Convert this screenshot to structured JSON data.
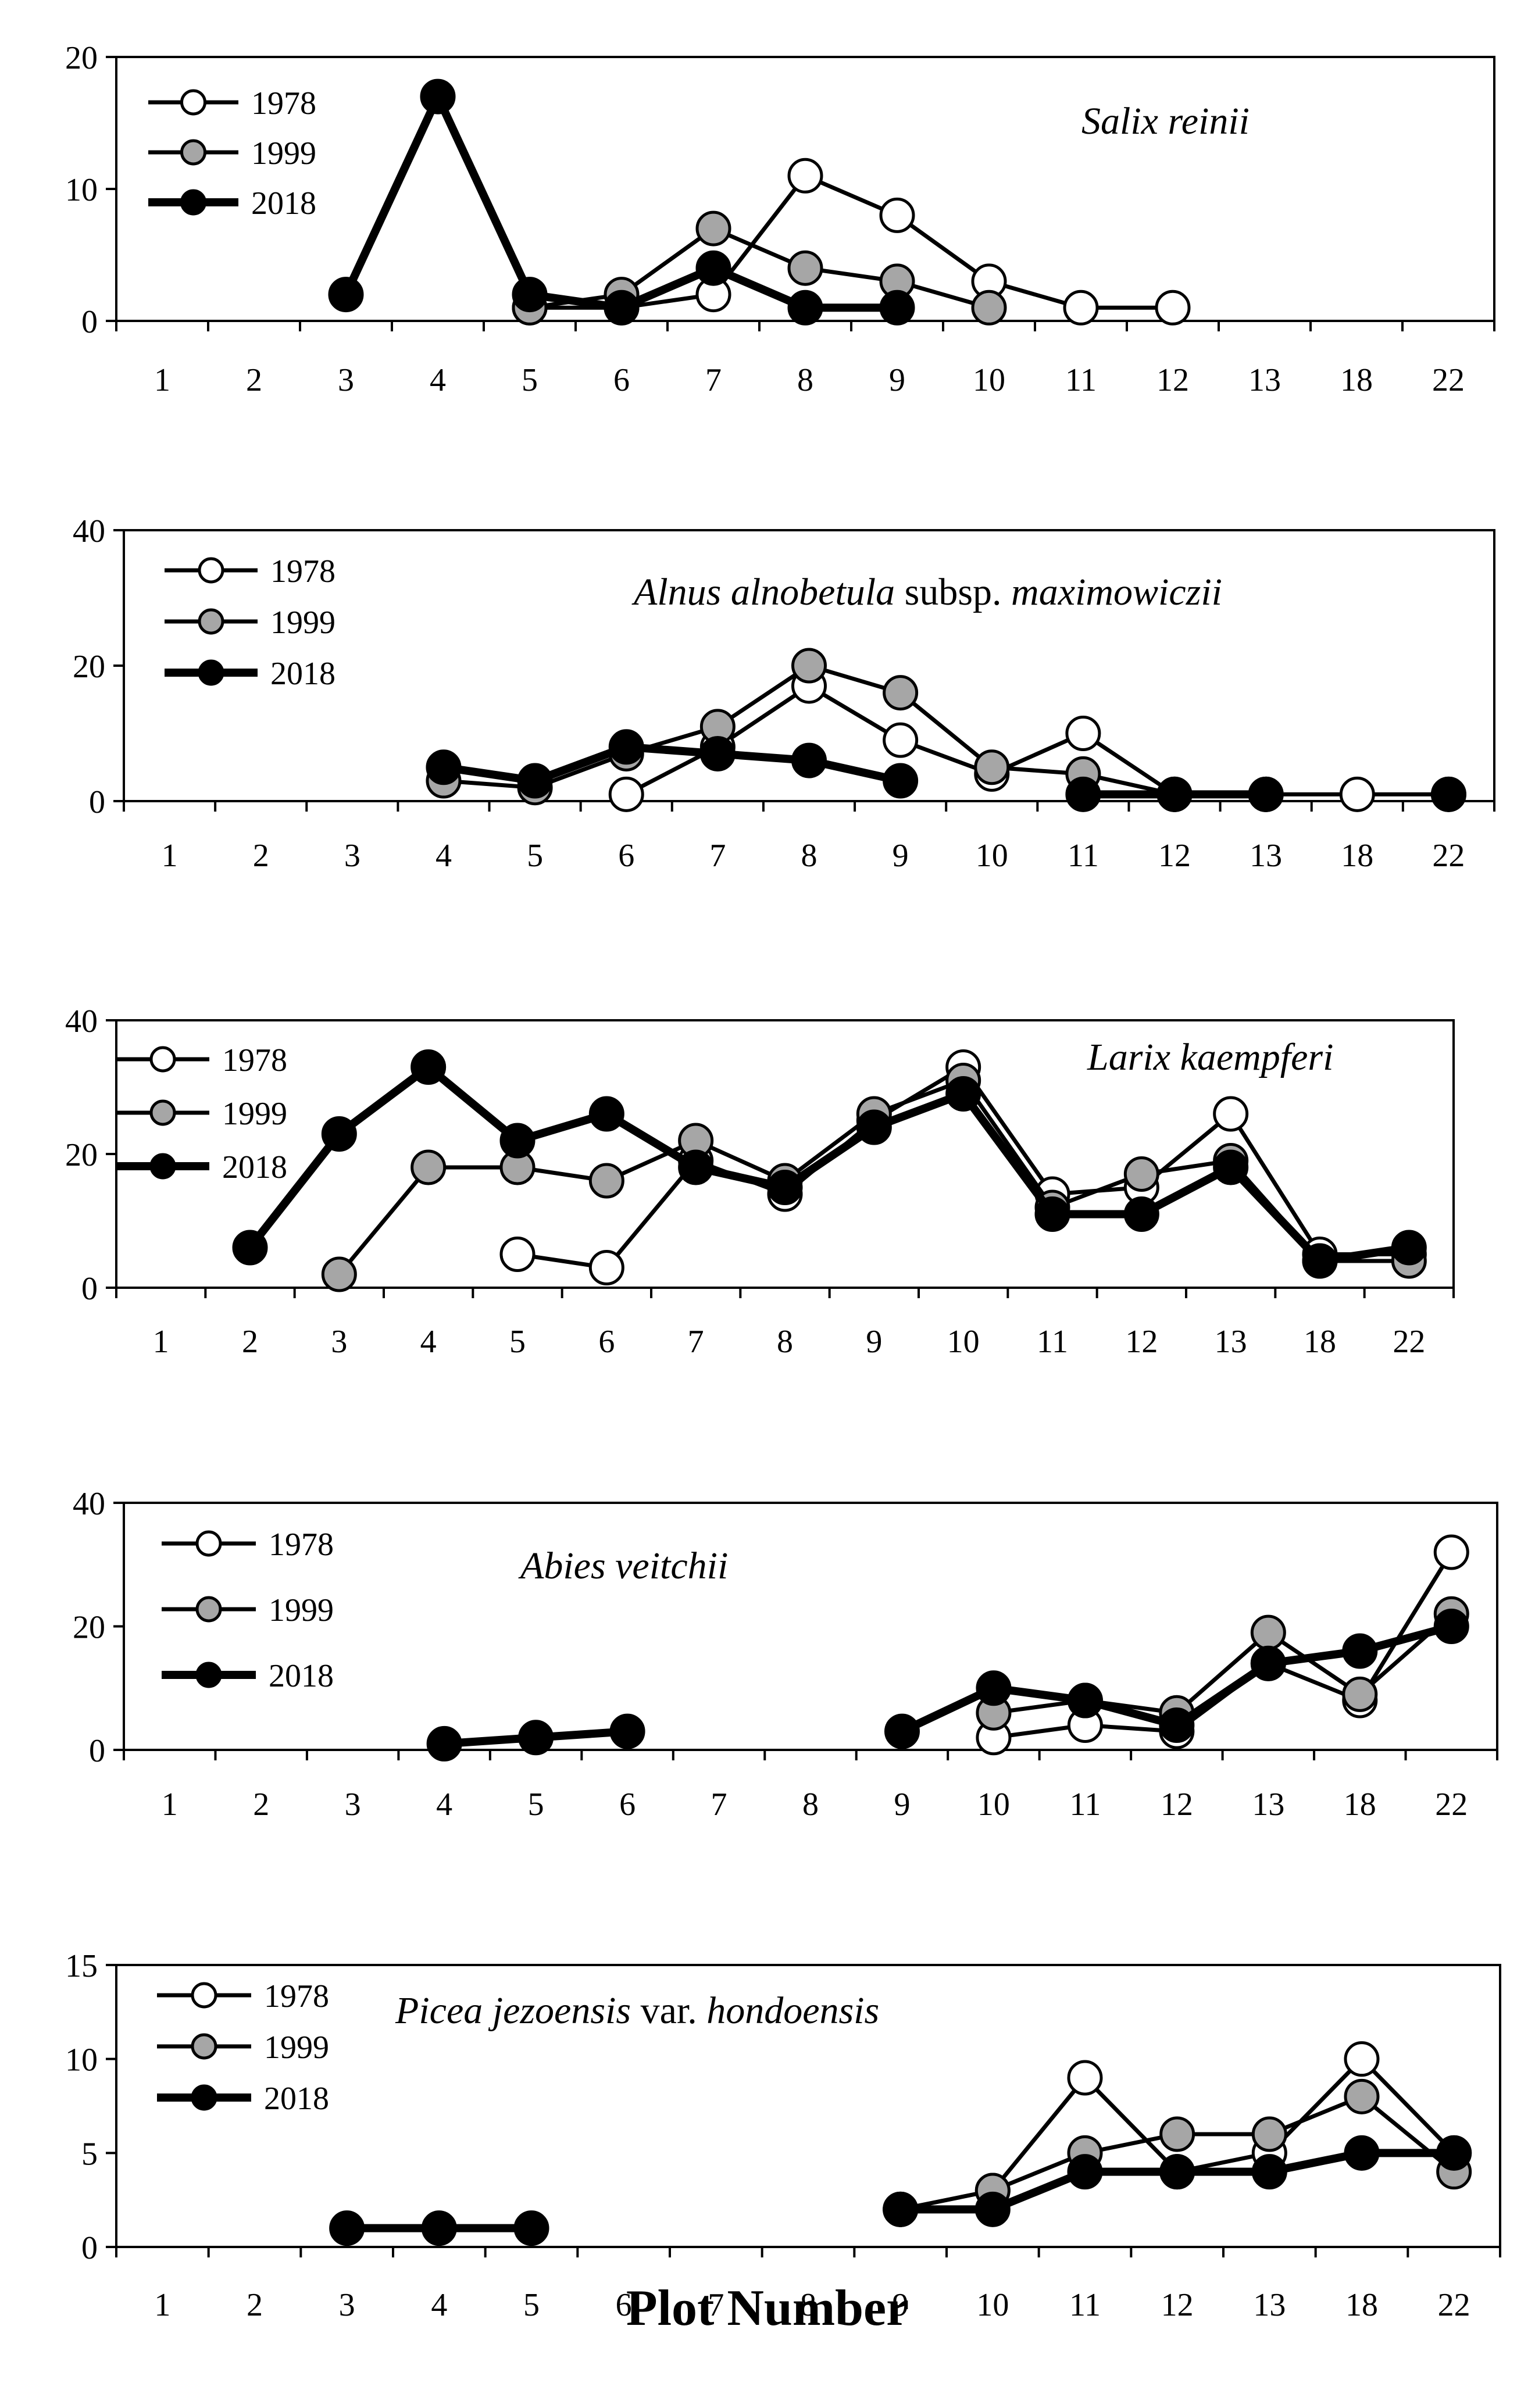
{
  "x_axis_title": "Plot Number",
  "colors": {
    "1978": "#ffffff",
    "1999": "#a6a6a6",
    "2018": "#000000",
    "stroke": "#000000"
  },
  "chart_data": [
    {
      "type": "line",
      "title": "Salix reinii",
      "title_parts": [
        {
          "text": "Salix reinii",
          "italic": true
        }
      ],
      "categories": [
        "1",
        "2",
        "3",
        "4",
        "5",
        "6",
        "7",
        "8",
        "9",
        "10",
        "11",
        "12",
        "13",
        "18",
        "22"
      ],
      "ylim": [
        0,
        20
      ],
      "yticks": [
        "0",
        "10",
        "20"
      ],
      "legend_position": "top-left",
      "series": [
        {
          "name": "1978",
          "values": [
            null,
            null,
            null,
            null,
            1,
            1,
            2,
            11,
            8,
            3,
            1,
            1,
            null,
            null,
            null
          ]
        },
        {
          "name": "1999",
          "values": [
            null,
            null,
            null,
            null,
            1,
            2,
            7,
            4,
            3,
            1,
            null,
            null,
            null,
            null,
            null
          ]
        },
        {
          "name": "2018",
          "values": [
            null,
            null,
            2,
            17,
            2,
            1,
            4,
            1,
            1,
            null,
            null,
            null,
            null,
            null,
            null
          ]
        }
      ]
    },
    {
      "type": "line",
      "title": "Alnus alnobetula subsp. maximowiczii",
      "title_parts": [
        {
          "text": "Alnus alnobetula",
          "italic": true
        },
        {
          "text": " subsp. ",
          "italic": false
        },
        {
          "text": "maximowiczii",
          "italic": true
        }
      ],
      "categories": [
        "1",
        "2",
        "3",
        "4",
        "5",
        "6",
        "7",
        "8",
        "9",
        "10",
        "11",
        "12",
        "13",
        "18",
        "22"
      ],
      "ylim": [
        0,
        40
      ],
      "yticks": [
        "0",
        "20",
        "40"
      ],
      "legend_position": "top-left",
      "series": [
        {
          "name": "1978",
          "values": [
            null,
            null,
            null,
            null,
            null,
            1,
            8,
            17,
            9,
            4,
            10,
            1,
            1,
            1,
            1
          ]
        },
        {
          "name": "1999",
          "values": [
            null,
            null,
            null,
            3,
            2,
            7,
            11,
            20,
            16,
            5,
            4,
            1,
            1,
            null,
            null
          ]
        },
        {
          "name": "2018",
          "values": [
            null,
            null,
            null,
            5,
            3,
            8,
            7,
            6,
            3,
            null,
            1,
            1,
            1,
            null,
            1
          ]
        }
      ]
    },
    {
      "type": "line",
      "title": "Larix kaempferi",
      "title_parts": [
        {
          "text": "Larix kaempferi",
          "italic": true
        }
      ],
      "categories": [
        "1",
        "2",
        "3",
        "4",
        "5",
        "6",
        "7",
        "8",
        "9",
        "10",
        "11",
        "12",
        "13",
        "18",
        "22"
      ],
      "ylim": [
        0,
        40
      ],
      "yticks": [
        "0",
        "20",
        "40"
      ],
      "legend_position": "top-left",
      "series": [
        {
          "name": "1978",
          "values": [
            null,
            null,
            null,
            null,
            5,
            3,
            19,
            14,
            25,
            33,
            14,
            15,
            26,
            5,
            5
          ]
        },
        {
          "name": "1999",
          "values": [
            null,
            null,
            2,
            18,
            18,
            16,
            22,
            16,
            26,
            31,
            12,
            17,
            19,
            4,
            4
          ]
        },
        {
          "name": "2018",
          "values": [
            null,
            6,
            23,
            33,
            22,
            26,
            18,
            15,
            24,
            29,
            11,
            11,
            18,
            4,
            6
          ]
        }
      ]
    },
    {
      "type": "line",
      "title": "Abies veitchii",
      "title_parts": [
        {
          "text": "Abies veitchii",
          "italic": true
        }
      ],
      "categories": [
        "1",
        "2",
        "3",
        "4",
        "5",
        "6",
        "7",
        "8",
        "9",
        "10",
        "11",
        "12",
        "13",
        "18",
        "22"
      ],
      "ylim": [
        0,
        40
      ],
      "yticks": [
        "0",
        "20",
        "40"
      ],
      "legend_position": "top-left",
      "series": [
        {
          "name": "1978",
          "values": [
            null,
            null,
            null,
            null,
            null,
            null,
            null,
            null,
            null,
            2,
            4,
            3,
            14,
            8,
            32
          ]
        },
        {
          "name": "1999",
          "values": [
            null,
            null,
            null,
            null,
            null,
            null,
            null,
            null,
            null,
            6,
            8,
            6,
            19,
            9,
            22
          ]
        },
        {
          "name": "2018",
          "values": [
            null,
            null,
            null,
            1,
            2,
            3,
            null,
            null,
            3,
            10,
            8,
            4,
            14,
            16,
            20
          ]
        }
      ]
    },
    {
      "type": "line",
      "title": "Picea jezoensis var. hondoensis",
      "title_parts": [
        {
          "text": "Picea jezoensis",
          "italic": true
        },
        {
          "text": " var. ",
          "italic": false
        },
        {
          "text": "hondoensis",
          "italic": true
        }
      ],
      "categories": [
        "1",
        "2",
        "3",
        "4",
        "5",
        "6",
        "7",
        "8",
        "9",
        "10",
        "11",
        "12",
        "13",
        "18",
        "22"
      ],
      "ylim": [
        0,
        15
      ],
      "yticks": [
        "0",
        "5",
        "10",
        "15"
      ],
      "legend_position": "top-left",
      "series": [
        {
          "name": "1978",
          "values": [
            null,
            null,
            null,
            null,
            null,
            null,
            null,
            null,
            2,
            3,
            9,
            4,
            5,
            10,
            5
          ]
        },
        {
          "name": "1999",
          "values": [
            null,
            null,
            null,
            null,
            null,
            null,
            null,
            null,
            2,
            3,
            5,
            6,
            6,
            8,
            4
          ]
        },
        {
          "name": "2018",
          "values": [
            null,
            null,
            1,
            1,
            1,
            null,
            null,
            null,
            2,
            2,
            4,
            4,
            4,
            5,
            5
          ]
        }
      ]
    }
  ]
}
